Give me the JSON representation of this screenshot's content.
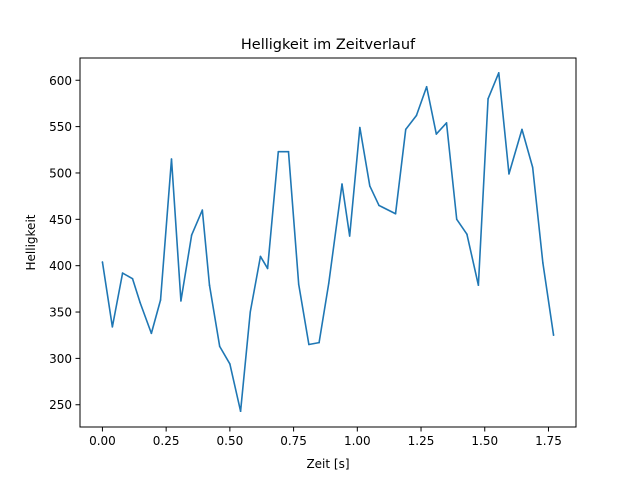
{
  "chart_data": {
    "type": "line",
    "title": "Helligkeit im Zeitverlauf",
    "xlabel": "Zeit [s]",
    "ylabel": "Helligkeit",
    "xlim": [
      -0.088,
      1.858
    ],
    "ylim": [
      226,
      624
    ],
    "xticks": [
      0.0,
      0.25,
      0.5,
      0.75,
      1.0,
      1.25,
      1.5,
      1.75
    ],
    "xtick_labels": [
      "0.00",
      "0.25",
      "0.50",
      "0.75",
      "1.00",
      "1.25",
      "1.50",
      "1.75"
    ],
    "yticks": [
      250,
      300,
      350,
      400,
      450,
      500,
      550,
      600
    ],
    "ytick_labels": [
      "250",
      "300",
      "350",
      "400",
      "450",
      "500",
      "550",
      "600"
    ],
    "grid": false,
    "series": [
      {
        "color": "#1f77b4",
        "x": [
          0.0,
          0.039,
          0.079,
          0.118,
          0.148,
          0.192,
          0.228,
          0.271,
          0.308,
          0.35,
          0.392,
          0.42,
          0.46,
          0.5,
          0.542,
          0.58,
          0.62,
          0.648,
          0.69,
          0.73,
          0.77,
          0.81,
          0.85,
          0.888,
          0.94,
          0.97,
          1.01,
          1.049,
          1.085,
          1.15,
          1.19,
          1.232,
          1.272,
          1.31,
          1.35,
          1.39,
          1.43,
          1.475,
          1.513,
          1.555,
          1.595,
          1.646,
          1.688,
          1.728,
          1.77
        ],
        "y": [
          404,
          334,
          392,
          386,
          360,
          327,
          363,
          515,
          362,
          433,
          460,
          379,
          313,
          294,
          243,
          350,
          410,
          397,
          523,
          523,
          380,
          315,
          317,
          381,
          488,
          432,
          549,
          486,
          465,
          456,
          547,
          562,
          593,
          542,
          554,
          450,
          434,
          379,
          580,
          608,
          499,
          547,
          506,
          403,
          325
        ]
      }
    ]
  }
}
